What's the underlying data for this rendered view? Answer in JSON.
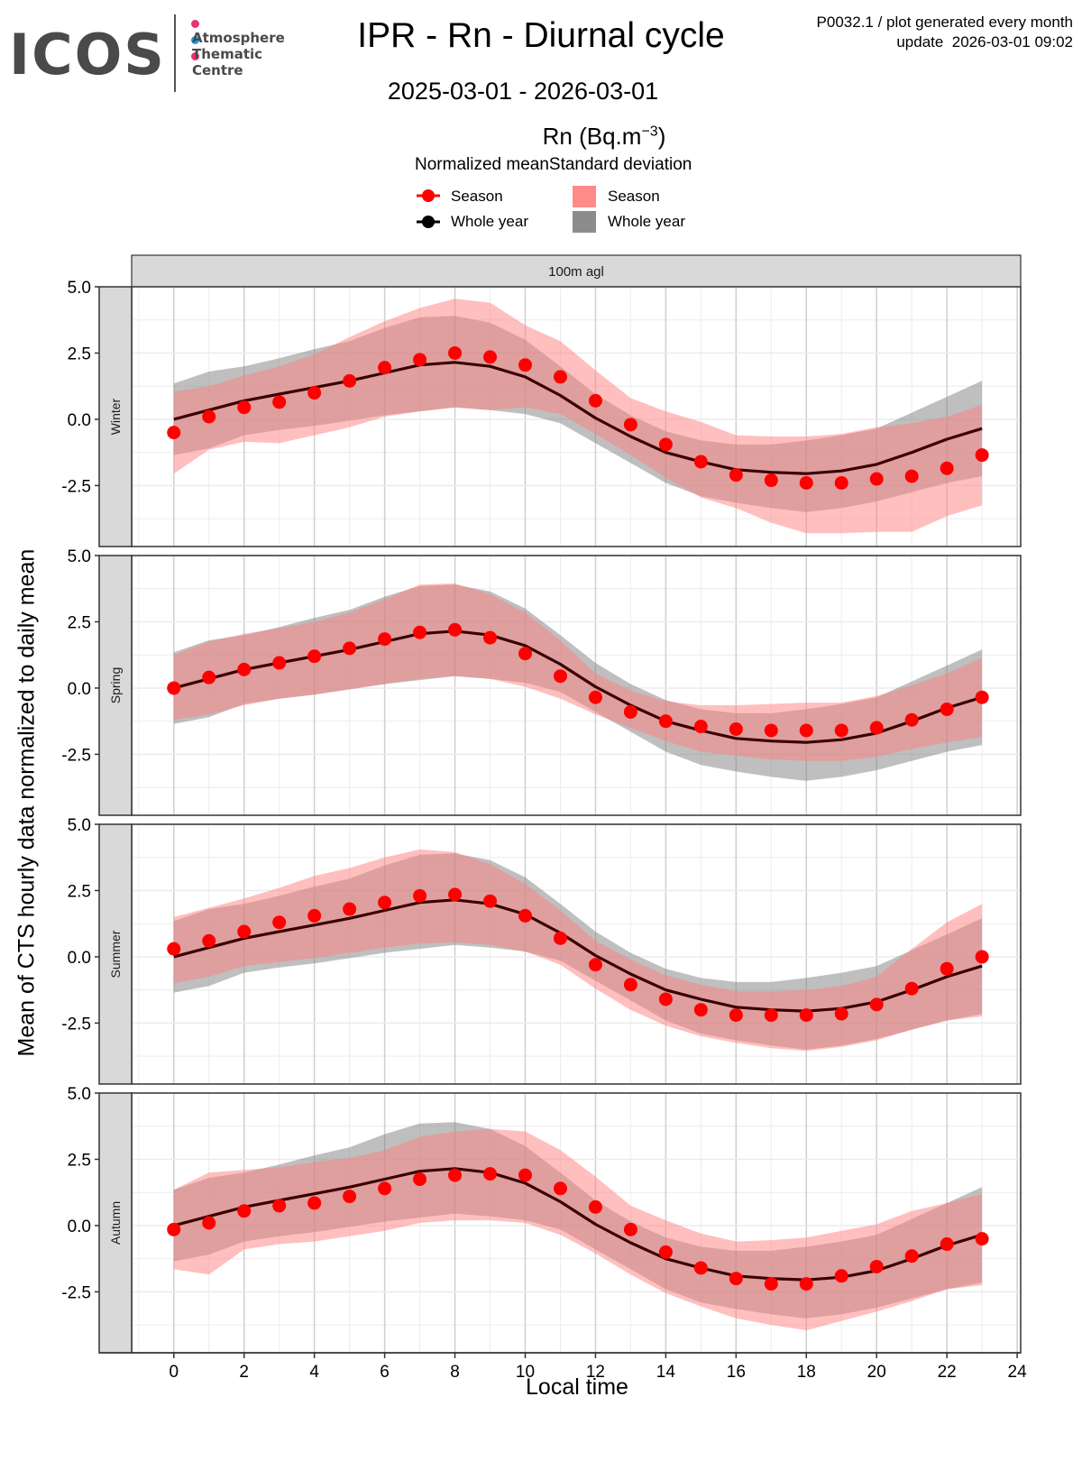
{
  "header": {
    "logo": {
      "brand": "ICOS",
      "subtitle_lines": [
        "Atmosphere",
        "Thematic",
        "Centre"
      ],
      "dot_colors": [
        "#e8336b",
        "#1e9be8",
        "#e8336b"
      ]
    },
    "title": "IPR - Rn - Diurnal cycle",
    "meta_line1": "P0032.1 / plot generated every month",
    "meta_line2": "update  2026-03-01 09:02",
    "date_range": "2025-03-01 - 2026-03-01",
    "unit_base": "Rn (Bq.m",
    "unit_exp": "−3",
    "unit_close": ")"
  },
  "legend": {
    "title_mean": "Normalized mean",
    "title_sd": "Standard deviation",
    "mean_items": [
      {
        "label": "Season",
        "color": "#ff0000"
      },
      {
        "label": "Whole year",
        "color": "#000000"
      }
    ],
    "sd_items": [
      {
        "label": "Season",
        "color": "#ff8a8a"
      },
      {
        "label": "Whole year",
        "color": "#8c8c8c"
      }
    ]
  },
  "chart_data": {
    "type": "line",
    "title": "IPR - Rn - Diurnal cycle",
    "subtitle": "2025-03-01 - 2026-03-01",
    "xlabel": "Local time",
    "ylabel": "Mean of CTS hourly data normalized to daily mean",
    "facet_column": "100m agl",
    "x": [
      0,
      1,
      2,
      3,
      4,
      5,
      6,
      7,
      8,
      9,
      10,
      11,
      12,
      13,
      14,
      15,
      16,
      17,
      18,
      19,
      20,
      21,
      22,
      23
    ],
    "xlim": [
      -1.2,
      24.1
    ],
    "ylim": [
      -4.8,
      5.0
    ],
    "x_ticks": [
      "0",
      "2",
      "4",
      "6",
      "8",
      "10",
      "12",
      "14",
      "16",
      "18",
      "20",
      "22",
      "24"
    ],
    "y_ticks": [
      "5.0",
      "2.5",
      "0.0",
      "-2.5"
    ],
    "grid": true,
    "legend_position": "top",
    "whole_year": {
      "mean": [
        0.0,
        0.35,
        0.7,
        0.95,
        1.2,
        1.45,
        1.75,
        2.05,
        2.15,
        2.0,
        1.6,
        0.9,
        0.05,
        -0.65,
        -1.25,
        -1.6,
        -1.9,
        -2.0,
        -2.05,
        -1.95,
        -1.7,
        -1.25,
        -0.75,
        -0.35
      ],
      "sd_upper": [
        1.35,
        1.8,
        2.0,
        2.3,
        2.65,
        2.95,
        3.45,
        3.85,
        3.9,
        3.65,
        3.0,
        2.0,
        0.95,
        0.15,
        -0.45,
        -0.8,
        -0.95,
        -0.95,
        -0.8,
        -0.6,
        -0.35,
        0.25,
        0.85,
        1.45
      ],
      "sd_lower": [
        -1.35,
        -1.1,
        -0.6,
        -0.4,
        -0.25,
        -0.05,
        0.15,
        0.3,
        0.45,
        0.35,
        0.2,
        -0.15,
        -0.9,
        -1.65,
        -2.4,
        -2.9,
        -3.15,
        -3.35,
        -3.5,
        -3.35,
        -3.1,
        -2.75,
        -2.4,
        -2.15
      ]
    },
    "seasons": [
      {
        "name": "Winter",
        "mean": [
          -0.5,
          0.1,
          0.45,
          0.65,
          1.0,
          1.45,
          1.95,
          2.25,
          2.5,
          2.35,
          2.05,
          1.6,
          0.7,
          -0.2,
          -0.95,
          -1.6,
          -2.1,
          -2.3,
          -2.4,
          -2.4,
          -2.25,
          -2.15,
          -1.85,
          -1.35
        ],
        "sd_upper": [
          1.05,
          1.25,
          1.65,
          2.0,
          2.45,
          3.1,
          3.7,
          4.2,
          4.55,
          4.4,
          3.55,
          2.95,
          1.85,
          0.8,
          0.3,
          -0.1,
          -0.6,
          -0.65,
          -0.65,
          -0.55,
          -0.3,
          -0.15,
          0.1,
          0.55
        ],
        "sd_lower": [
          -2.05,
          -1.15,
          -0.85,
          -0.9,
          -0.6,
          -0.3,
          0.1,
          0.3,
          0.45,
          0.35,
          0.45,
          0.2,
          -0.55,
          -1.35,
          -2.2,
          -2.95,
          -3.35,
          -3.9,
          -4.3,
          -4.3,
          -4.25,
          -4.25,
          -3.65,
          -3.25
        ]
      },
      {
        "name": "Spring",
        "mean": [
          0.0,
          0.4,
          0.7,
          0.95,
          1.2,
          1.5,
          1.85,
          2.1,
          2.2,
          1.9,
          1.3,
          0.45,
          -0.35,
          -0.9,
          -1.25,
          -1.45,
          -1.55,
          -1.6,
          -1.6,
          -1.6,
          -1.5,
          -1.2,
          -0.8,
          -0.35
        ],
        "sd_upper": [
          1.25,
          1.75,
          2.05,
          2.25,
          2.5,
          2.85,
          3.35,
          3.9,
          3.95,
          3.55,
          2.85,
          1.8,
          0.55,
          -0.1,
          -0.5,
          -0.65,
          -0.65,
          -0.6,
          -0.55,
          -0.55,
          -0.3,
          0.1,
          0.55,
          1.15
        ],
        "sd_lower": [
          -1.2,
          -1.0,
          -0.65,
          -0.4,
          -0.25,
          -0.05,
          0.15,
          0.35,
          0.45,
          0.35,
          0.05,
          -0.4,
          -1.0,
          -1.5,
          -2.0,
          -2.4,
          -2.55,
          -2.7,
          -2.75,
          -2.75,
          -2.6,
          -2.3,
          -2.05,
          -1.85
        ]
      },
      {
        "name": "Summer",
        "mean": [
          0.3,
          0.6,
          0.95,
          1.3,
          1.55,
          1.8,
          2.05,
          2.3,
          2.35,
          2.1,
          1.55,
          0.7,
          -0.3,
          -1.05,
          -1.6,
          -2.0,
          -2.2,
          -2.2,
          -2.2,
          -2.15,
          -1.8,
          -1.2,
          -0.45,
          0.0
        ],
        "sd_upper": [
          1.5,
          1.85,
          2.2,
          2.6,
          3.05,
          3.35,
          3.75,
          4.05,
          3.95,
          3.5,
          2.75,
          1.75,
          0.6,
          -0.1,
          -0.7,
          -1.05,
          -1.3,
          -1.3,
          -1.25,
          -1.1,
          -0.75,
          0.3,
          1.3,
          2.0
        ],
        "sd_lower": [
          -1.0,
          -0.75,
          -0.35,
          -0.2,
          -0.05,
          0.15,
          0.35,
          0.5,
          0.55,
          0.45,
          0.2,
          -0.3,
          -1.2,
          -2.0,
          -2.6,
          -3.0,
          -3.25,
          -3.45,
          -3.55,
          -3.4,
          -3.15,
          -2.75,
          -2.4,
          -2.25
        ]
      },
      {
        "name": "Autumn",
        "mean": [
          -0.15,
          0.1,
          0.55,
          0.75,
          0.85,
          1.1,
          1.4,
          1.75,
          1.9,
          1.95,
          1.9,
          1.4,
          0.7,
          -0.15,
          -1.0,
          -1.6,
          -2.0,
          -2.2,
          -2.2,
          -1.9,
          -1.55,
          -1.15,
          -0.7,
          -0.5
        ],
        "sd_upper": [
          1.35,
          2.0,
          2.1,
          2.2,
          2.4,
          2.55,
          2.85,
          3.35,
          3.55,
          3.65,
          3.55,
          2.85,
          1.85,
          0.75,
          0.2,
          -0.3,
          -0.6,
          -0.55,
          -0.45,
          -0.2,
          0.05,
          0.55,
          0.85,
          1.2
        ],
        "sd_lower": [
          -1.65,
          -1.85,
          -0.9,
          -0.7,
          -0.6,
          -0.4,
          -0.2,
          0.1,
          0.2,
          0.2,
          0.1,
          -0.35,
          -1.05,
          -1.85,
          -2.55,
          -3.05,
          -3.5,
          -3.75,
          -3.95,
          -3.6,
          -3.25,
          -2.85,
          -2.4,
          -2.25
        ]
      }
    ]
  },
  "axes": {
    "xlabel": "Local time",
    "ylabel": "Mean of CTS hourly data normalized to daily mean",
    "facet_label": "100m agl"
  }
}
